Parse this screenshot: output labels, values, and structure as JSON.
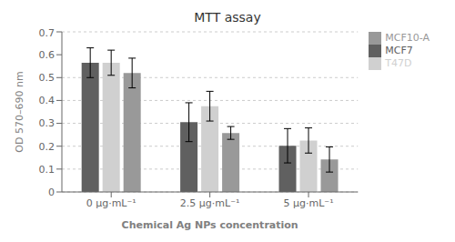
{
  "chart_data": {
    "type": "bar",
    "title": "MTT assay",
    "xlabel": "Chemical Ag NPs concentration",
    "ylabel": "OD 570–690 nm",
    "categories": [
      "0 μg·mL⁻¹",
      "2.5 μg·mL⁻¹",
      "5 μg·mL⁻¹"
    ],
    "series": [
      {
        "name": "MCF7",
        "color": "#606060",
        "values": [
          0.565,
          0.305,
          0.202
        ],
        "errors": [
          0.065,
          0.085,
          0.075
        ]
      },
      {
        "name": "T47D",
        "color": "#d0d0d0",
        "values": [
          0.565,
          0.375,
          0.225
        ],
        "errors": [
          0.055,
          0.065,
          0.055
        ]
      },
      {
        "name": "MCF10-A",
        "color": "#999999",
        "values": [
          0.52,
          0.258,
          0.142
        ],
        "errors": [
          0.065,
          0.028,
          0.055
        ]
      }
    ],
    "ylim": [
      0,
      0.7
    ],
    "yticks": [
      0,
      0.1,
      0.2,
      0.3,
      0.4,
      0.5,
      0.6,
      0.7
    ],
    "grid": true,
    "legend": "right"
  }
}
